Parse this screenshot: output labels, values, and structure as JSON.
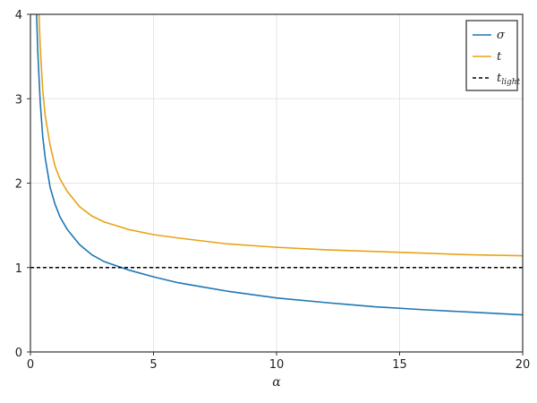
{
  "chart_data": {
    "type": "line",
    "xlabel": "α",
    "ylabel": "",
    "xlim": [
      0,
      20
    ],
    "ylim": [
      0,
      4
    ],
    "xticks": [
      0,
      5,
      10,
      15,
      20
    ],
    "yticks": [
      0,
      1,
      2,
      3,
      4
    ],
    "grid": true,
    "legend_position": "top-right",
    "series": [
      {
        "name": "σ",
        "color": "#1f77b4",
        "style": "solid",
        "x": [
          0.25,
          0.3,
          0.4,
          0.5,
          0.6,
          0.8,
          1.0,
          1.2,
          1.5,
          2.0,
          2.5,
          3.0,
          4.0,
          5.0,
          6.0,
          7.0,
          8.0,
          10.0,
          12.0,
          14.0,
          16.0,
          18.0,
          20.0
        ],
        "y": [
          4.0,
          3.55,
          2.95,
          2.55,
          2.3,
          1.95,
          1.75,
          1.6,
          1.45,
          1.27,
          1.15,
          1.07,
          0.97,
          0.89,
          0.82,
          0.77,
          0.72,
          0.64,
          0.585,
          0.535,
          0.5,
          0.47,
          0.44
        ]
      },
      {
        "name": "t",
        "color": "#e8a317",
        "style": "solid",
        "x": [
          0.35,
          0.4,
          0.5,
          0.6,
          0.8,
          1.0,
          1.2,
          1.5,
          2.0,
          2.5,
          3.0,
          4.0,
          5.0,
          6.0,
          8.0,
          10.0,
          12.0,
          14.0,
          16.0,
          18.0,
          20.0
        ],
        "y": [
          4.0,
          3.6,
          3.1,
          2.8,
          2.45,
          2.2,
          2.05,
          1.9,
          1.72,
          1.61,
          1.54,
          1.45,
          1.39,
          1.35,
          1.28,
          1.24,
          1.21,
          1.19,
          1.17,
          1.15,
          1.14
        ]
      },
      {
        "name": "t",
        "name_subscript": "light",
        "color": "#000000",
        "style": "dashed",
        "x": [
          0,
          20
        ],
        "y": [
          1,
          1
        ]
      }
    ]
  }
}
